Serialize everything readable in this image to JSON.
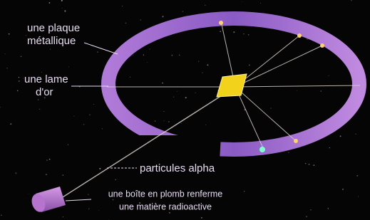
{
  "labels": {
    "plate": [
      "une plaque",
      "métallique"
    ],
    "foil": [
      "une lame",
      "d'or"
    ],
    "particles": "particules alpha",
    "source": [
      "une boîte en plomb renferme",
      "une matière radioactive"
    ]
  }
}
